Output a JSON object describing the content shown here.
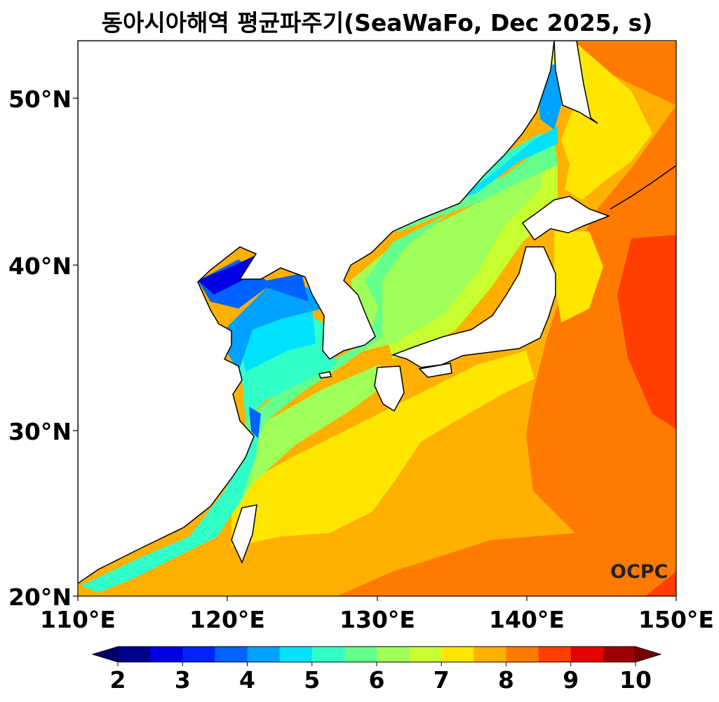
{
  "title": "동아시아해역 평균파주기(SeaWaFo, Dec 2025, s)",
  "logo": "OCPC",
  "y_axis": [
    "50°N",
    "40°N",
    "30°N",
    "20°N"
  ],
  "x_axis": [
    "110°E",
    "120°E",
    "130°E",
    "140°E",
    "150°E"
  ],
  "colorbar": {
    "ticks": [
      "2",
      "3",
      "4",
      "5",
      "6",
      "7",
      "8",
      "9",
      "10"
    ],
    "min": 2,
    "max": 10,
    "step": 0.5,
    "colors": [
      "#00008c",
      "#0000e6",
      "#0022ff",
      "#0062ff",
      "#00a2ff",
      "#00e2ff",
      "#30ffc8",
      "#64ff8c",
      "#a0ff58",
      "#c8ff30",
      "#ffe600",
      "#ffb000",
      "#ff7a00",
      "#ff3e00",
      "#e60000",
      "#9c0000"
    ],
    "under_color": "#00006a",
    "over_color": "#7a0000"
  }
}
